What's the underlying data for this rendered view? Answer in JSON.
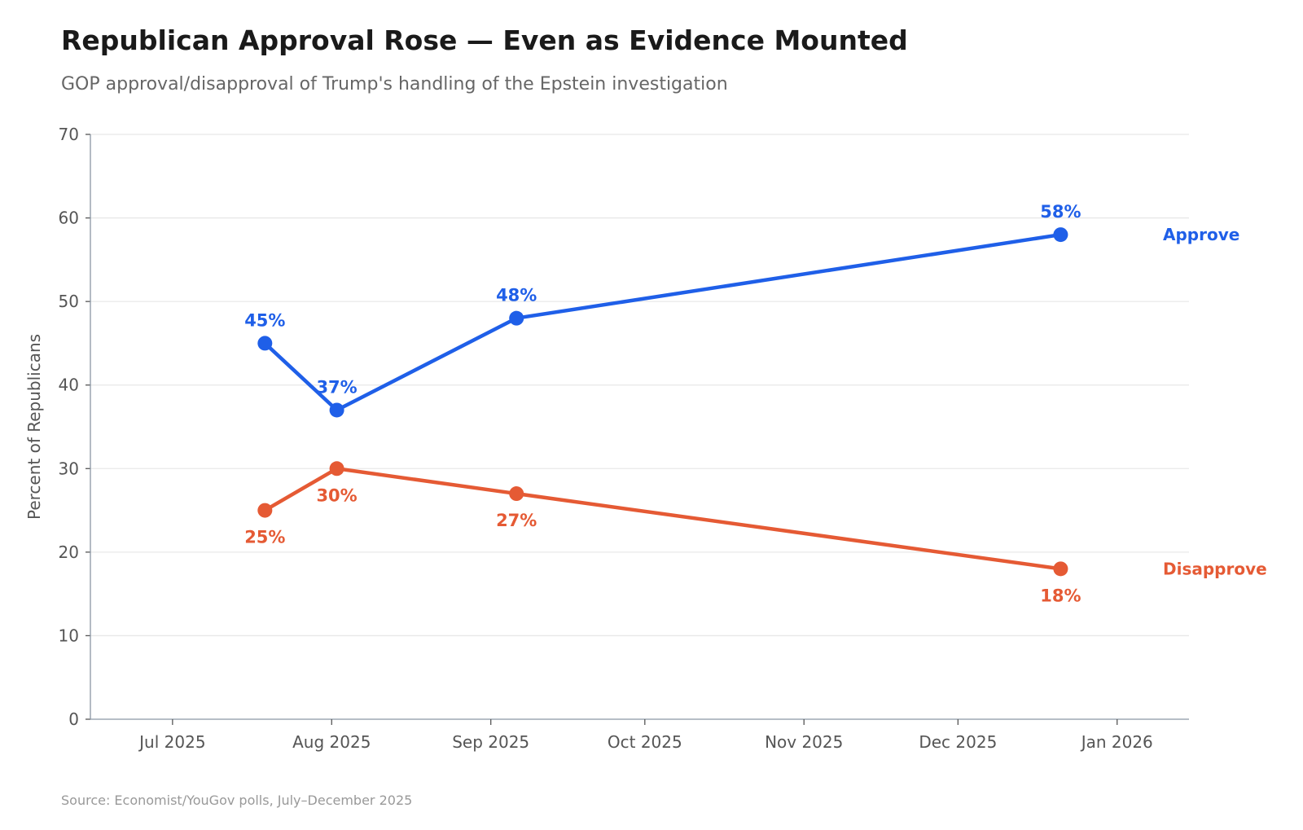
{
  "chart_data": {
    "type": "line",
    "title": "Republican Approval Rose — Even as Evidence Mounted",
    "subtitle": "GOP approval/disapproval of Trump's handling of the Epstein investigation",
    "xlabel": "",
    "ylabel": "Percent of Republicans",
    "ylim": [
      0,
      70
    ],
    "xlim": [
      "2025-06-15",
      "2026-01-15"
    ],
    "yticks": [
      0,
      10,
      20,
      30,
      40,
      50,
      60,
      70
    ],
    "xticks": [
      {
        "date": "2025-07-01",
        "label": "Jul 2025"
      },
      {
        "date": "2025-08-01",
        "label": "Aug 2025"
      },
      {
        "date": "2025-09-01",
        "label": "Sep 2025"
      },
      {
        "date": "2025-10-01",
        "label": "Oct 2025"
      },
      {
        "date": "2025-11-01",
        "label": "Nov 2025"
      },
      {
        "date": "2025-12-01",
        "label": "Dec 2025"
      },
      {
        "date": "2026-01-01",
        "label": "Jan 2026"
      }
    ],
    "grid": true,
    "x": [
      "2025-07-19",
      "2025-08-02",
      "2025-09-06",
      "2025-12-21"
    ],
    "series": [
      {
        "name": "Approve",
        "color": "#1f5fe8",
        "values": [
          45,
          37,
          48,
          58
        ],
        "labels": [
          "45%",
          "37%",
          "48%",
          "58%"
        ],
        "label_position": "above"
      },
      {
        "name": "Disapprove",
        "color": "#e55a34",
        "values": [
          25,
          30,
          27,
          18
        ],
        "labels": [
          "25%",
          "30%",
          "27%",
          "18%"
        ],
        "label_position": "below"
      }
    ],
    "legend": "direct labels at right end of lines",
    "source": "Source: Economist/YouGov polls, July–December 2025"
  }
}
